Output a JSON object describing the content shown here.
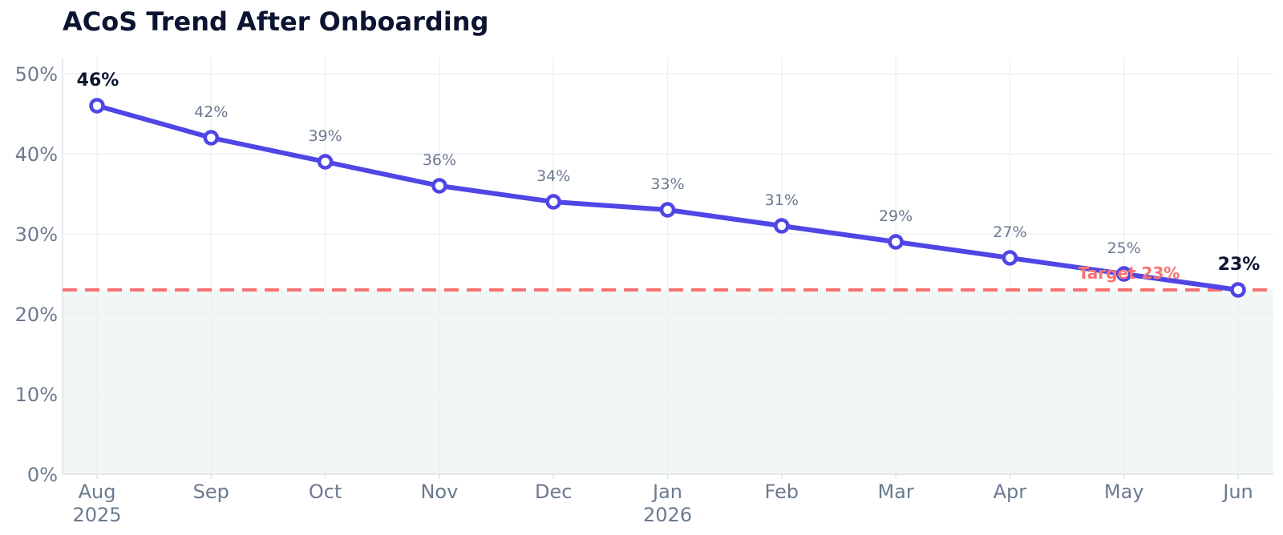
{
  "chart_data": {
    "type": "line",
    "title": "ACoS Trend After Onboarding",
    "xlabel": "",
    "ylabel": "",
    "categories": [
      "Aug",
      "Sep",
      "Oct",
      "Nov",
      "Dec",
      "Jan",
      "Feb",
      "Mar",
      "Apr",
      "May",
      "Jun"
    ],
    "year_labels": [
      "2025",
      "",
      "",
      "",
      "",
      "2026",
      "",
      "",
      "",
      "",
      ""
    ],
    "series": [
      {
        "values": [
          46,
          42,
          39,
          36,
          34,
          33,
          31,
          29,
          27,
          25,
          23
        ]
      }
    ],
    "data_labels": [
      "46%",
      "42%",
      "39%",
      "36%",
      "34%",
      "33%",
      "31%",
      "29%",
      "27%",
      "25%",
      "23%"
    ],
    "highlighted_points": [
      0,
      10
    ],
    "y_ticks": [
      0,
      10,
      20,
      30,
      40,
      50
    ],
    "y_tick_labels": [
      "0%",
      "10%",
      "20%",
      "30%",
      "40%",
      "50%"
    ],
    "ylim": [
      0,
      52
    ],
    "target": {
      "value": 23,
      "label": "Target 23%"
    },
    "grid": true,
    "legend": "none",
    "colors": {
      "line": "#4f46e5",
      "target": "#f87171",
      "below_target_fill": "#f1f7f4",
      "grid": "#eef1f5",
      "axis": "#dde3ea",
      "title": "#0b1430",
      "muted_text": "#6b7a90"
    }
  }
}
